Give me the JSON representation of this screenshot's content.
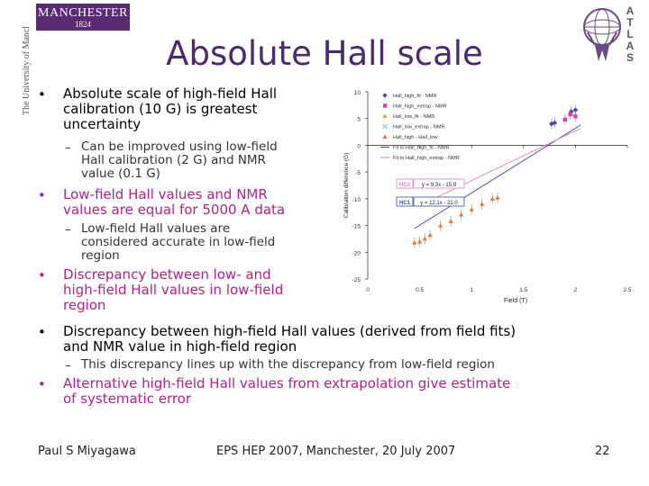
{
  "header": {
    "manchester_logo": "MANCHESTER",
    "manchester_year": "1824",
    "university_text": "The University of Manchester",
    "title": "Absolute Hall scale",
    "atlas_letters": [
      "A",
      "T",
      "L",
      "A",
      "S"
    ]
  },
  "bullets": [
    {
      "lines": [
        "Absolute scale of high-field Hall",
        "calibration (10 G) is greatest",
        "uncertainty"
      ],
      "color": "#000000",
      "subs": [
        {
          "lines": [
            "Can be improved using low-field",
            "Hall calibration (2 G) and NMR",
            "value (0.1 G)"
          ]
        }
      ]
    },
    {
      "lines": [
        "Low-field Hall values and NMR",
        "values are equal for 5000 A data"
      ],
      "color": "#b3218a",
      "subs": [
        {
          "lines": [
            "Low-field Hall values are",
            "considered accurate in low-field",
            "region"
          ]
        }
      ]
    },
    {
      "lines": [
        "Discrepancy between low- and",
        "high-field Hall values in low-field",
        "region"
      ],
      "color": "#b3218a",
      "subs": []
    },
    {
      "lines": [
        "Discrepancy between high-field Hall values (derived from field fits)",
        "and NMR value in high-field region"
      ],
      "color": "#000000",
      "subs": [
        {
          "lines": [
            "This discrepancy lines up with the discrepancy from low-field region"
          ]
        }
      ]
    },
    {
      "lines": [
        "Alternative high-field Hall values from extrapolation give estimate",
        "of systematic error"
      ],
      "color": "#b3218a",
      "subs": []
    }
  ],
  "footer": {
    "author": "Paul S Miyagawa",
    "event": "EPS HEP 2007, Manchester, 20 July 2007",
    "page": "22"
  },
  "chart_data": {
    "type": "scatter",
    "xlabel": "Field (T)",
    "ylabel": "Calibration difference (G)",
    "xlim": [
      0,
      2.5
    ],
    "ylim": [
      -25,
      10
    ],
    "xticks": [
      "0",
      "0.5",
      "1",
      "1.5",
      "2",
      "2.5"
    ],
    "yticks": [
      "10",
      "5",
      "0",
      "-5",
      "-10",
      "-15",
      "-20",
      "-25"
    ],
    "legend_position": "top-right",
    "series": [
      {
        "name": "Hall_high_fit - NMR",
        "color": "#3b4fb0",
        "marker": "diamond",
        "x": [
          1.77,
          1.8,
          1.96,
          2.0
        ],
        "y": [
          4.0,
          4.2,
          6.3,
          6.6
        ]
      },
      {
        "name": "Hall_high_extrap - NMR",
        "color": "#d63abf",
        "marker": "square",
        "x": [
          1.9,
          1.95,
          2.0
        ],
        "y": [
          4.8,
          5.8,
          5.4
        ]
      },
      {
        "name": "Hall_low_fit - NMR",
        "color": "#e8a020",
        "marker": "triangle",
        "x": [],
        "y": []
      },
      {
        "name": "Hall_low_extrap - NMR",
        "color": "#80c8e0",
        "marker": "cross",
        "x": [],
        "y": []
      },
      {
        "name": "Hall_high - Hall_low",
        "color": "#e07830",
        "marker": "triangle",
        "x": [
          0.45,
          0.5,
          0.55,
          0.6,
          0.7,
          0.8,
          0.9,
          1.0,
          1.1,
          1.2,
          1.25
        ],
        "y": [
          -18.2,
          -18.0,
          -17.5,
          -16.8,
          -15.0,
          -14.2,
          -13.0,
          -12.0,
          -11.0,
          -10.0,
          -9.8
        ]
      },
      {
        "name": "Fit to Hall_high_fit - NMR",
        "color": "#3b4fb0",
        "marker": "line",
        "x": [],
        "y": []
      },
      {
        "name": "Fit to Hall_high_extrap - NMR",
        "color": "#e080c0",
        "marker": "line",
        "x": [],
        "y": []
      }
    ],
    "fit_lines": [
      {
        "label": "HC1",
        "equation": "y = 12.1x - 21.0",
        "slope": 12.1,
        "intercept": -21.0,
        "color": "#3b4fb0",
        "x_range": [
          0.45,
          2.05
        ]
      },
      {
        "label": "HC2",
        "equation": "y = 9.3x - 15.9",
        "slope": 9.3,
        "intercept": -15.9,
        "color": "#e080c0",
        "x_range": [
          0.6,
          2.05
        ]
      }
    ]
  },
  "colors": {
    "title": "#4b2a6e",
    "accent_bullet": "#b3218a",
    "manchester_purple": "#5a2a72"
  }
}
